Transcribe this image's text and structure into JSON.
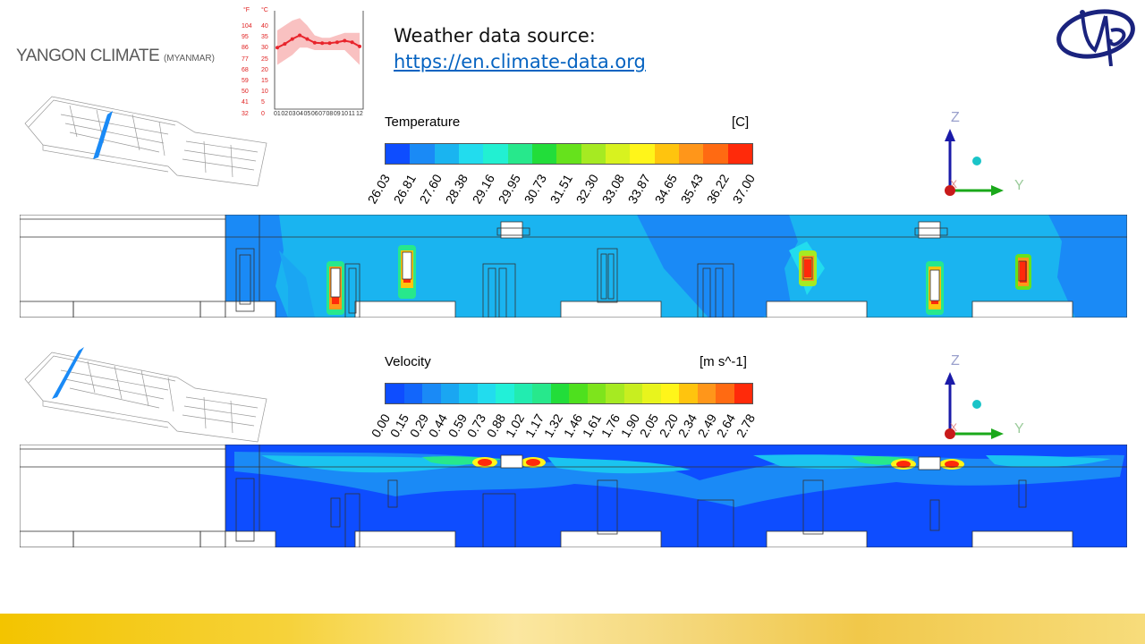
{
  "header": {
    "title_main": "YANGON CLIMATE",
    "title_sub": "(MYANMAR)",
    "source_label": "Weather data source:",
    "source_link": "https://en.climate-data.org"
  },
  "climate_chart": {
    "f_unit": "°F",
    "c_unit": "°C",
    "f_ticks": [
      "104",
      "95",
      "86",
      "77",
      "68",
      "59",
      "50",
      "41",
      "32"
    ],
    "c_ticks": [
      "40",
      "35",
      "30",
      "25",
      "20",
      "15",
      "10",
      "5",
      "0"
    ],
    "months": [
      "01",
      "02",
      "03",
      "04",
      "05",
      "06",
      "07",
      "08",
      "09",
      "10",
      "11",
      "12"
    ]
  },
  "chart_data": {
    "type": "line",
    "x": [
      "01",
      "02",
      "03",
      "04",
      "05",
      "06",
      "07",
      "08",
      "09",
      "10",
      "11",
      "12"
    ],
    "series": [
      {
        "values": [
          25,
          26.5,
          28.5,
          30,
          28.5,
          27,
          26.8,
          26.8,
          27.2,
          27.8,
          27.2,
          25.5
        ]
      }
    ],
    "band_low": [
      18,
      20,
      22,
      25,
      25,
      24,
      24,
      24,
      24,
      24,
      21,
      18
    ],
    "band_high": [
      32,
      34,
      36,
      37,
      34,
      30,
      29,
      29,
      30,
      31,
      31,
      31
    ],
    "ylim": [
      0,
      40
    ],
    "color": "#e8242c"
  },
  "temperature_panel": {
    "title": "Temperature",
    "unit": "[C]",
    "ticks": [
      "26.03",
      "26.81",
      "27.60",
      "28.38",
      "29.16",
      "29.95",
      "30.73",
      "31.51",
      "32.30",
      "33.08",
      "33.87",
      "34.65",
      "35.43",
      "36.22",
      "37.00"
    ],
    "colors": [
      "#0e4dff",
      "#1a8af6",
      "#1ab4f0",
      "#22dcee",
      "#22f0d2",
      "#27e88c",
      "#22dd3a",
      "#66e21c",
      "#a6ea22",
      "#d8f21f",
      "#fff51a",
      "#ffc40e",
      "#ff961a",
      "#ff6a12",
      "#ff2a0a"
    ]
  },
  "velocity_panel": {
    "title": "Velocity",
    "unit": "[m s^-1]",
    "ticks": [
      "0.00",
      "0.15",
      "0.29",
      "0.44",
      "0.59",
      "0.73",
      "0.88",
      "1.02",
      "1.17",
      "1.32",
      "1.46",
      "1.61",
      "1.76",
      "1.90",
      "2.05",
      "2.20",
      "2.34",
      "2.49",
      "2.64",
      "2.78"
    ],
    "colors": [
      "#0e4dff",
      "#1266fb",
      "#1a8af6",
      "#1aa6f2",
      "#1ac4f0",
      "#22dcee",
      "#22f0d8",
      "#22ecb0",
      "#27e88c",
      "#22dd3a",
      "#4ee01e",
      "#7ee41c",
      "#a6ea22",
      "#c8ee20",
      "#e8f41d",
      "#fff51a",
      "#ffc40e",
      "#ff961a",
      "#ff6a12",
      "#ff2a0a"
    ]
  },
  "axes": {
    "z": "Z",
    "y": "Y",
    "x": "X"
  },
  "colors": {
    "contour_base_temp": "#1ab4f0",
    "contour_base_vel": "#0e4dff",
    "link": "#0563c1",
    "logo": "#1a237e"
  }
}
